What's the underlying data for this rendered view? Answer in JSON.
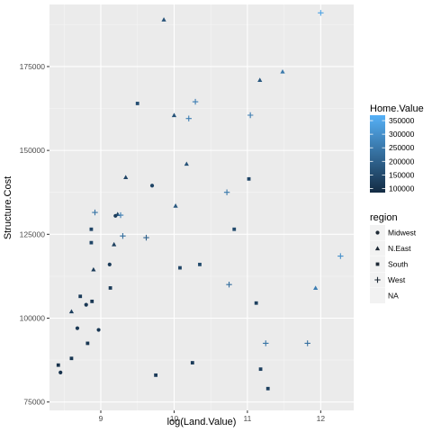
{
  "chart_data": {
    "type": "scatter",
    "xlabel": "log(Land.Value)",
    "ylabel": "Structure.Cost",
    "xlim": [
      8.3,
      12.45
    ],
    "ylim": [
      72500,
      193500
    ],
    "xticks": [
      9,
      10,
      11,
      12
    ],
    "xtick_labels": [
      "9",
      "10",
      "11",
      "12"
    ],
    "yticks": [
      75000,
      100000,
      125000,
      150000,
      175000
    ],
    "ytick_labels": [
      "75000",
      "100000",
      "125000",
      "150000",
      "175000"
    ],
    "grid": true,
    "panel_background": "#ebebeb",
    "color_legend": {
      "title": "Home.Value",
      "labels": [
        "350000",
        "300000",
        "250000",
        "200000",
        "150000",
        "100000"
      ],
      "values": [
        350000,
        300000,
        250000,
        200000,
        150000,
        100000
      ],
      "range": [
        85000,
        370000
      ],
      "low_color": "#132b43",
      "high_color": "#56b1f7"
    },
    "shape_legend": {
      "title": "region",
      "entries": [
        {
          "label": "Midwest",
          "shape": "circle"
        },
        {
          "label": "N.East",
          "shape": "triangle"
        },
        {
          "label": "South",
          "shape": "square"
        },
        {
          "label": "West",
          "shape": "plus"
        },
        {
          "label": "NA",
          "shape": "none"
        }
      ]
    },
    "points": [
      {
        "x": 8.45,
        "y": 83800,
        "shape": "circle",
        "value": 100000
      },
      {
        "x": 8.42,
        "y": 86000,
        "shape": "square",
        "value": 100000
      },
      {
        "x": 8.6,
        "y": 88000,
        "shape": "square",
        "value": 110000
      },
      {
        "x": 8.82,
        "y": 92500,
        "shape": "square",
        "value": 110000
      },
      {
        "x": 8.97,
        "y": 96500,
        "shape": "circle",
        "value": 110000
      },
      {
        "x": 8.68,
        "y": 97000,
        "shape": "circle",
        "value": 110000
      },
      {
        "x": 8.6,
        "y": 102000,
        "shape": "triangle",
        "value": 130000
      },
      {
        "x": 8.8,
        "y": 104000,
        "shape": "circle",
        "value": 110000
      },
      {
        "x": 8.88,
        "y": 105000,
        "shape": "square",
        "value": 110000
      },
      {
        "x": 8.72,
        "y": 106500,
        "shape": "square",
        "value": 120000
      },
      {
        "x": 8.9,
        "y": 114500,
        "shape": "triangle",
        "value": 120000
      },
      {
        "x": 9.12,
        "y": 116000,
        "shape": "circle",
        "value": 120000
      },
      {
        "x": 9.13,
        "y": 109000,
        "shape": "square",
        "value": 120000
      },
      {
        "x": 9.18,
        "y": 122000,
        "shape": "triangle",
        "value": 130000
      },
      {
        "x": 8.87,
        "y": 122500,
        "shape": "square",
        "value": 140000
      },
      {
        "x": 8.87,
        "y": 126500,
        "shape": "square",
        "value": 140000
      },
      {
        "x": 8.92,
        "y": 131500,
        "shape": "plus",
        "value": 240000
      },
      {
        "x": 9.2,
        "y": 130500,
        "shape": "circle",
        "value": 120000
      },
      {
        "x": 9.23,
        "y": 131000,
        "shape": "triangle",
        "value": 140000
      },
      {
        "x": 9.27,
        "y": 130700,
        "shape": "plus",
        "value": 260000
      },
      {
        "x": 9.3,
        "y": 124500,
        "shape": "plus",
        "value": 230000
      },
      {
        "x": 9.34,
        "y": 142000,
        "shape": "triangle",
        "value": 140000
      },
      {
        "x": 9.5,
        "y": 164000,
        "shape": "square",
        "value": 160000
      },
      {
        "x": 9.62,
        "y": 124000,
        "shape": "plus",
        "value": 200000
      },
      {
        "x": 9.7,
        "y": 139500,
        "shape": "circle",
        "value": 140000
      },
      {
        "x": 9.75,
        "y": 83000,
        "shape": "square",
        "value": 120000
      },
      {
        "x": 9.86,
        "y": 189000,
        "shape": "triangle",
        "value": 170000
      },
      {
        "x": 10.0,
        "y": 160500,
        "shape": "triangle",
        "value": 170000
      },
      {
        "x": 10.02,
        "y": 133500,
        "shape": "triangle",
        "value": 180000
      },
      {
        "x": 10.08,
        "y": 115000,
        "shape": "square",
        "value": 140000
      },
      {
        "x": 10.17,
        "y": 146000,
        "shape": "triangle",
        "value": 170000
      },
      {
        "x": 10.2,
        "y": 159500,
        "shape": "plus",
        "value": 260000
      },
      {
        "x": 10.25,
        "y": 86700,
        "shape": "square",
        "value": 120000
      },
      {
        "x": 10.29,
        "y": 164500,
        "shape": "plus",
        "value": 260000
      },
      {
        "x": 10.35,
        "y": 116000,
        "shape": "square",
        "value": 150000
      },
      {
        "x": 10.72,
        "y": 137500,
        "shape": "plus",
        "value": 250000
      },
      {
        "x": 10.75,
        "y": 110000,
        "shape": "plus",
        "value": 230000
      },
      {
        "x": 10.82,
        "y": 126500,
        "shape": "square",
        "value": 150000
      },
      {
        "x": 11.02,
        "y": 141500,
        "shape": "square",
        "value": 140000
      },
      {
        "x": 11.04,
        "y": 160500,
        "shape": "plus",
        "value": 260000
      },
      {
        "x": 11.12,
        "y": 104500,
        "shape": "square",
        "value": 130000
      },
      {
        "x": 11.17,
        "y": 171000,
        "shape": "triangle",
        "value": 180000
      },
      {
        "x": 11.18,
        "y": 84800,
        "shape": "square",
        "value": 130000
      },
      {
        "x": 11.25,
        "y": 92500,
        "shape": "plus",
        "value": 240000
      },
      {
        "x": 11.28,
        "y": 79000,
        "shape": "square",
        "value": 130000
      },
      {
        "x": 11.48,
        "y": 173500,
        "shape": "triangle",
        "value": 250000
      },
      {
        "x": 11.82,
        "y": 92500,
        "shape": "plus",
        "value": 230000
      },
      {
        "x": 11.93,
        "y": 109000,
        "shape": "triangle",
        "value": 260000
      },
      {
        "x": 12.0,
        "y": 191000,
        "shape": "plus",
        "value": 340000
      },
      {
        "x": 12.27,
        "y": 118500,
        "shape": "plus",
        "value": 300000
      }
    ]
  }
}
